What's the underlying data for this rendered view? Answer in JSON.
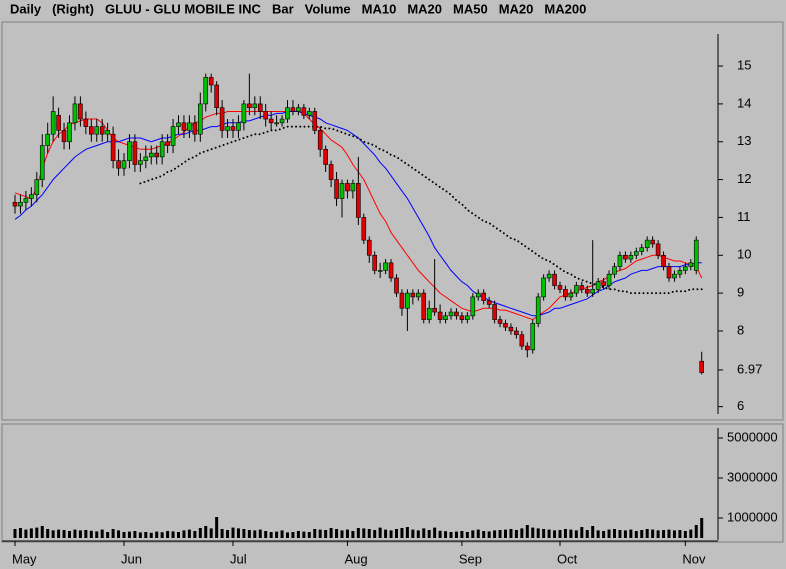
{
  "chart_data": [
    {
      "type": "candlestick",
      "header_left": [
        "Daily",
        "(Right)",
        "GLUU - GLU MOBILE INC",
        "Bar",
        "Volume"
      ],
      "header_right": [
        "MA20",
        "MA200"
      ],
      "categories": [
        "May",
        null,
        null,
        null,
        null,
        null,
        null,
        null,
        null,
        null,
        null,
        null,
        null,
        null,
        null,
        null,
        null,
        null,
        null,
        null,
        "Jun",
        null,
        null,
        null,
        null,
        null,
        null,
        null,
        null,
        null,
        null,
        null,
        null,
        null,
        null,
        null,
        null,
        null,
        null,
        null,
        "Jul",
        null,
        null,
        null,
        null,
        null,
        null,
        null,
        null,
        null,
        null,
        null,
        null,
        null,
        null,
        null,
        null,
        null,
        null,
        null,
        null,
        "Aug",
        null,
        null,
        null,
        null,
        null,
        null,
        null,
        null,
        null,
        null,
        null,
        null,
        null,
        null,
        null,
        null,
        null,
        null,
        null,
        null,
        "Sep",
        null,
        null,
        null,
        null,
        null,
        null,
        null,
        null,
        null,
        null,
        null,
        null,
        null,
        null,
        null,
        null,
        null,
        "Oct",
        null,
        null,
        null,
        null,
        null,
        null,
        null,
        null,
        null,
        null,
        null,
        null,
        null,
        null,
        null,
        null,
        null,
        null,
        null,
        null,
        null,
        null,
        "Nov",
        null,
        null,
        null
      ],
      "open": [
        11.4,
        11.3,
        11.4,
        11.5,
        11.6,
        12.0,
        12.9,
        13.2,
        13.7,
        13.3,
        13.0,
        13.5,
        14.0,
        13.6,
        13.4,
        13.2,
        13.4,
        13.2,
        13.2,
        12.5,
        12.3,
        12.5,
        13.0,
        12.4,
        12.5,
        12.6,
        12.7,
        12.6,
        13.0,
        12.9,
        13.4,
        13.5,
        13.3,
        13.5,
        13.2,
        14.0,
        14.7,
        14.5,
        13.9,
        13.3,
        13.4,
        13.3,
        13.5,
        14.0,
        13.9,
        14.0,
        13.8,
        13.6,
        13.5,
        13.5,
        13.6,
        13.9,
        13.8,
        13.9,
        13.7,
        13.8,
        13.3,
        12.8,
        12.4,
        12.0,
        11.5,
        11.9,
        11.7,
        11.9,
        11.0,
        10.4,
        10.0,
        9.6,
        9.6,
        9.8,
        9.4,
        9.0,
        8.6,
        9.0,
        8.9,
        9.0,
        8.3,
        8.6,
        8.5,
        8.3,
        8.4,
        8.5,
        8.4,
        8.3,
        8.4,
        8.9,
        9.0,
        8.8,
        8.7,
        8.3,
        8.2,
        8.1,
        8.0,
        7.9,
        7.6,
        7.5,
        8.2,
        8.9,
        9.4,
        9.5,
        9.2,
        9.1,
        8.9,
        9.0,
        9.2,
        9.1,
        9.0,
        9.1,
        9.3,
        9.2,
        9.5,
        9.7,
        10.0,
        9.9,
        10.0,
        10.1,
        10.2,
        10.4,
        10.3,
        10.0,
        9.7,
        9.4,
        9.5,
        9.6,
        9.7,
        9.6,
        7.2
      ],
      "high": [
        11.6,
        11.6,
        11.7,
        11.8,
        12.2,
        13.2,
        13.5,
        14.2,
        13.9,
        13.5,
        13.7,
        14.2,
        14.2,
        13.8,
        13.6,
        13.6,
        13.6,
        13.5,
        13.4,
        12.8,
        12.7,
        13.2,
        13.2,
        12.7,
        12.9,
        12.9,
        12.9,
        13.2,
        13.2,
        13.6,
        13.7,
        13.7,
        13.7,
        13.7,
        14.3,
        14.8,
        14.8,
        14.6,
        14.1,
        13.6,
        13.6,
        13.7,
        14.1,
        14.8,
        14.2,
        14.2,
        14.0,
        13.8,
        13.7,
        13.7,
        14.1,
        14.1,
        14.0,
        14.0,
        13.9,
        13.9,
        13.4,
        12.9,
        12.5,
        12.2,
        12.0,
        12.0,
        12.0,
        12.6,
        11.1,
        10.5,
        10.1,
        9.8,
        9.9,
        9.9,
        9.5,
        9.1,
        9.1,
        9.1,
        9.1,
        9.1,
        8.8,
        9.9,
        8.7,
        8.5,
        8.6,
        8.6,
        8.5,
        8.5,
        9.0,
        9.1,
        9.1,
        8.9,
        8.8,
        8.4,
        8.3,
        8.2,
        8.1,
        8.0,
        7.7,
        8.3,
        9.0,
        9.5,
        9.6,
        9.6,
        9.3,
        9.2,
        9.1,
        9.3,
        9.3,
        9.2,
        10.4,
        9.4,
        9.4,
        9.6,
        9.8,
        10.1,
        10.1,
        10.1,
        10.2,
        10.3,
        10.5,
        10.5,
        10.4,
        10.1,
        9.8,
        9.6,
        9.7,
        9.8,
        9.9,
        10.5,
        7.45
      ],
      "low": [
        11.1,
        11.1,
        11.2,
        11.3,
        11.4,
        11.8,
        12.7,
        13.0,
        13.1,
        12.8,
        12.8,
        13.3,
        13.4,
        13.2,
        13.0,
        13.0,
        13.0,
        13.0,
        12.3,
        12.1,
        12.1,
        12.3,
        12.2,
        12.2,
        12.3,
        12.4,
        12.4,
        12.4,
        12.7,
        12.7,
        13.2,
        13.1,
        13.1,
        13.0,
        13.0,
        13.8,
        14.3,
        13.7,
        13.1,
        13.1,
        13.1,
        13.1,
        13.3,
        13.7,
        13.7,
        13.6,
        13.4,
        13.3,
        13.4,
        13.4,
        13.5,
        13.7,
        13.7,
        13.6,
        13.6,
        13.2,
        12.6,
        12.2,
        11.8,
        11.3,
        11.0,
        11.5,
        11.5,
        10.8,
        10.3,
        9.8,
        9.5,
        9.4,
        9.5,
        9.3,
        8.9,
        8.4,
        8.0,
        8.7,
        8.8,
        8.2,
        8.2,
        8.4,
        8.2,
        8.2,
        8.3,
        8.3,
        8.2,
        8.2,
        8.3,
        8.8,
        8.7,
        8.6,
        8.2,
        8.1,
        8.0,
        7.9,
        7.8,
        7.5,
        7.3,
        7.4,
        8.1,
        8.8,
        9.3,
        9.1,
        9.0,
        8.8,
        8.8,
        8.9,
        9.0,
        8.9,
        8.9,
        9.0,
        9.1,
        9.1,
        9.4,
        9.6,
        9.8,
        9.8,
        9.9,
        10.0,
        10.1,
        10.2,
        9.9,
        9.6,
        9.3,
        9.3,
        9.4,
        9.5,
        9.6,
        9.5,
        6.85
      ],
      "close": [
        11.3,
        11.4,
        11.5,
        11.6,
        12.0,
        12.9,
        13.2,
        13.8,
        13.3,
        13.0,
        13.5,
        14.0,
        13.6,
        13.4,
        13.2,
        13.4,
        13.2,
        13.3,
        12.5,
        12.3,
        12.5,
        13.0,
        12.4,
        12.5,
        12.6,
        12.7,
        12.6,
        13.0,
        12.9,
        13.4,
        13.5,
        13.3,
        13.5,
        13.2,
        14.0,
        14.7,
        14.5,
        13.9,
        13.3,
        13.4,
        13.3,
        13.5,
        14.0,
        13.9,
        14.0,
        13.8,
        13.6,
        13.5,
        13.5,
        13.6,
        13.9,
        13.8,
        13.9,
        13.7,
        13.8,
        13.3,
        12.8,
        12.4,
        12.0,
        11.5,
        11.9,
        11.7,
        11.9,
        11.0,
        10.4,
        10.0,
        9.6,
        9.6,
        9.8,
        9.4,
        9.0,
        8.6,
        9.0,
        8.9,
        9.0,
        8.3,
        8.6,
        8.5,
        8.3,
        8.4,
        8.5,
        8.4,
        8.3,
        8.4,
        8.9,
        9.0,
        8.8,
        8.7,
        8.3,
        8.2,
        8.1,
        8.0,
        7.9,
        7.6,
        7.5,
        8.2,
        8.9,
        9.4,
        9.5,
        9.2,
        9.1,
        8.9,
        9.0,
        9.2,
        9.1,
        9.0,
        9.1,
        9.3,
        9.2,
        9.5,
        9.7,
        10.0,
        9.9,
        10.0,
        10.1,
        10.2,
        10.4,
        10.3,
        10.0,
        9.7,
        9.4,
        9.5,
        9.6,
        9.7,
        9.8,
        10.4,
        6.9
      ],
      "up_color": "#00c000",
      "down_color": "#e00000",
      "series": [
        {
          "name": "MA10",
          "color": "#ff0000",
          "style": "solid",
          "values": [
            11.65,
            11.6,
            11.55,
            11.5,
            11.8,
            12.3,
            12.7,
            13.0,
            13.2,
            13.3,
            13.45,
            13.5,
            13.55,
            13.6,
            13.6,
            13.6,
            13.5,
            13.3,
            13.1,
            13.0,
            12.95,
            12.9,
            12.85,
            12.8,
            12.8,
            12.8,
            12.85,
            12.9,
            12.95,
            13.05,
            13.15,
            13.25,
            13.4,
            13.5,
            13.55,
            13.65,
            13.7,
            13.75,
            13.75,
            13.8,
            13.8,
            13.8,
            13.8,
            13.8,
            13.8,
            13.8,
            13.8,
            13.8,
            13.8,
            13.8,
            13.8,
            13.8,
            13.8,
            13.75,
            13.6,
            13.45,
            13.35,
            13.2,
            13.05,
            12.95,
            12.85,
            12.65,
            12.4,
            12.2,
            12.0,
            11.7,
            11.4,
            11.1,
            10.9,
            10.6,
            10.4,
            10.2,
            10.0,
            9.8,
            9.6,
            9.45,
            9.3,
            9.15,
            9.0,
            8.9,
            8.8,
            8.7,
            8.6,
            8.55,
            8.5,
            8.55,
            8.6,
            8.6,
            8.6,
            8.55,
            8.55,
            8.5,
            8.45,
            8.4,
            8.35,
            8.3,
            8.4,
            8.5,
            8.6,
            8.75,
            8.9,
            8.95,
            9.0,
            9.05,
            9.1,
            9.15,
            9.2,
            9.3,
            9.35,
            9.45,
            9.55,
            9.6,
            9.65,
            9.75,
            9.85,
            9.9,
            9.95,
            10.0,
            10.0,
            9.95,
            9.9,
            9.85,
            9.85,
            9.8,
            9.75,
            9.7,
            9.4
          ]
        },
        {
          "name": "MA20",
          "color": "#0000ff",
          "style": "solid",
          "values": [
            10.95,
            11.05,
            11.2,
            11.3,
            11.45,
            11.6,
            11.8,
            12.0,
            12.15,
            12.3,
            12.45,
            12.6,
            12.7,
            12.8,
            12.85,
            12.9,
            12.95,
            13.0,
            13.0,
            13.0,
            13.05,
            13.1,
            13.1,
            13.1,
            13.05,
            13.0,
            13.05,
            13.1,
            13.1,
            13.15,
            13.2,
            13.2,
            13.25,
            13.3,
            13.3,
            13.35,
            13.4,
            13.4,
            13.45,
            13.5,
            13.5,
            13.5,
            13.55,
            13.55,
            13.6,
            13.65,
            13.7,
            13.7,
            13.75,
            13.75,
            13.8,
            13.8,
            13.8,
            13.75,
            13.7,
            13.65,
            13.6,
            13.5,
            13.45,
            13.4,
            13.35,
            13.3,
            13.2,
            13.1,
            12.95,
            12.8,
            12.65,
            12.45,
            12.3,
            12.1,
            11.9,
            11.7,
            11.5,
            11.25,
            11.0,
            10.75,
            10.5,
            10.2,
            10.0,
            9.8,
            9.6,
            9.45,
            9.3,
            9.2,
            9.05,
            8.95,
            8.9,
            8.8,
            8.75,
            8.7,
            8.65,
            8.6,
            8.55,
            8.5,
            8.45,
            8.4,
            8.4,
            8.45,
            8.5,
            8.6,
            8.6,
            8.65,
            8.7,
            8.75,
            8.8,
            8.85,
            8.95,
            9.05,
            9.1,
            9.2,
            9.3,
            9.35,
            9.4,
            9.5,
            9.55,
            9.6,
            9.6,
            9.65,
            9.7,
            9.7,
            9.7,
            9.7,
            9.7,
            9.75,
            9.75,
            9.8,
            9.8
          ]
        },
        {
          "name": "MA50",
          "color": "#000000",
          "style": "dotted",
          "values": [
            null,
            null,
            null,
            null,
            null,
            null,
            null,
            null,
            null,
            null,
            null,
            null,
            null,
            null,
            null,
            null,
            null,
            null,
            null,
            null,
            null,
            null,
            null,
            11.9,
            11.95,
            12.0,
            12.05,
            12.1,
            12.2,
            12.25,
            12.35,
            12.45,
            12.55,
            12.6,
            12.7,
            12.75,
            12.8,
            12.85,
            12.9,
            12.95,
            13.0,
            13.05,
            13.1,
            13.15,
            13.2,
            13.2,
            13.25,
            13.3,
            13.3,
            13.35,
            13.4,
            13.4,
            13.4,
            13.4,
            13.4,
            13.4,
            13.4,
            13.35,
            13.35,
            13.3,
            13.25,
            13.2,
            13.15,
            13.1,
            13.0,
            12.95,
            12.9,
            12.8,
            12.75,
            12.65,
            12.6,
            12.5,
            12.4,
            12.3,
            12.2,
            12.1,
            12.0,
            11.9,
            11.8,
            11.7,
            11.6,
            11.45,
            11.35,
            11.2,
            11.1,
            11.0,
            10.9,
            10.85,
            10.75,
            10.65,
            10.55,
            10.45,
            10.4,
            10.3,
            10.2,
            10.1,
            10.0,
            9.9,
            9.85,
            9.75,
            9.65,
            9.55,
            9.5,
            9.4,
            9.35,
            9.3,
            9.25,
            9.2,
            9.15,
            9.1,
            9.1,
            9.05,
            9.05,
            9.0,
            9.0,
            9.0,
            9.0,
            9.0,
            9.0,
            9.0,
            9.0,
            9.05,
            9.05,
            9.05,
            9.1,
            9.1,
            9.1
          ]
        }
      ],
      "ylim": [
        5.7,
        15.9
      ],
      "yticks": [
        6,
        6.97,
        8,
        9,
        10,
        11,
        12,
        13,
        14,
        15
      ]
    },
    {
      "type": "bar",
      "color": "#000000",
      "values": [
        450000,
        500000,
        420000,
        480000,
        520000,
        600000,
        450000,
        380000,
        420000,
        400000,
        350000,
        420000,
        380000,
        400000,
        360000,
        330000,
        420000,
        300000,
        450000,
        380000,
        300000,
        320000,
        350000,
        280000,
        300000,
        260000,
        320000,
        290000,
        350000,
        330000,
        300000,
        380000,
        420000,
        350000,
        500000,
        600000,
        480000,
        1050000,
        450000,
        400000,
        520000,
        480000,
        450000,
        400000,
        380000,
        420000,
        350000,
        300000,
        320000,
        380000,
        280000,
        300000,
        350000,
        320000,
        300000,
        450000,
        420000,
        400000,
        500000,
        450000,
        380000,
        420000,
        350000,
        500000,
        480000,
        450000,
        400000,
        520000,
        420000,
        380000,
        450000,
        500000,
        550000,
        420000,
        380000,
        480000,
        400000,
        520000,
        360000,
        340000,
        300000,
        320000,
        350000,
        300000,
        380000,
        420000,
        350000,
        330000,
        380000,
        400000,
        420000,
        450000,
        400000,
        480000,
        650000,
        520000,
        480000,
        450000,
        420000,
        380000,
        400000,
        450000,
        420000,
        380000,
        550000,
        400000,
        600000,
        380000,
        350000,
        420000,
        450000,
        400000,
        380000,
        420000,
        350000,
        400000,
        450000,
        420000,
        380000,
        400000,
        420000,
        380000,
        400000,
        350000,
        420000,
        650000,
        1000000
      ],
      "ylim": [
        0,
        5600000
      ],
      "yticks": [
        1000000,
        3000000,
        5000000
      ]
    }
  ]
}
